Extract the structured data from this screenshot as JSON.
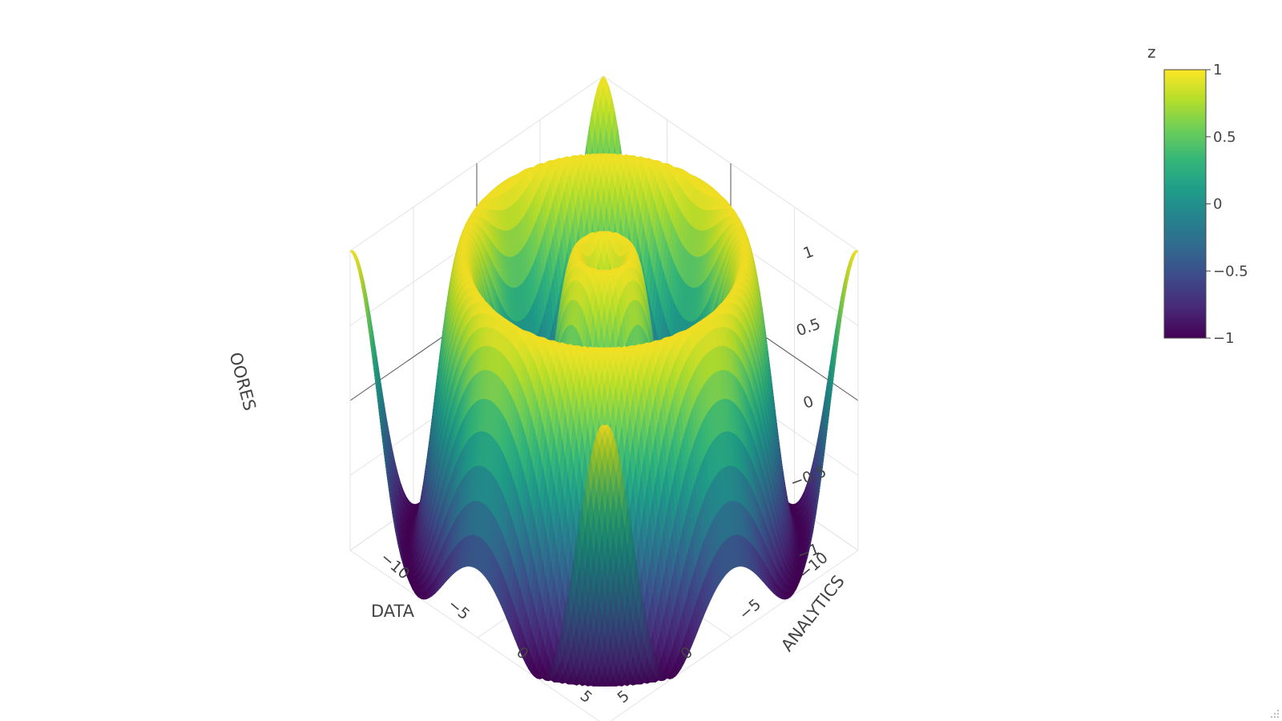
{
  "chart_data": {
    "type": "surface",
    "title": "",
    "colorscale": "Viridis",
    "colors": [
      "#440154",
      "#482878",
      "#3e4989",
      "#31688e",
      "#26828e",
      "#1f9e89",
      "#35b779",
      "#6ece58",
      "#b5de2b",
      "#fde725"
    ],
    "x_axis": {
      "title": "DATA",
      "range": [
        -10,
        10
      ],
      "ticks": [
        -10,
        -5,
        0,
        5
      ],
      "tick_labels": [
        "−10",
        "−5",
        "0",
        "5"
      ]
    },
    "y_axis": {
      "title": "ANALYTICS",
      "range": [
        -10,
        10
      ],
      "ticks": [
        -10,
        -5,
        0,
        5
      ],
      "tick_labels": [
        "−10",
        "−5",
        "0",
        "5"
      ]
    },
    "z_axis": {
      "title": "OORES",
      "range": [
        -1,
        1
      ],
      "ticks": [
        -1,
        -0.5,
        0,
        0.5,
        1
      ],
      "tick_labels": [
        "−1",
        "−0.5",
        "0",
        "0.5",
        "1"
      ]
    },
    "colorbar": {
      "title": "z",
      "cmin": -1,
      "cmax": 1,
      "tick_values": [
        -1,
        -0.5,
        0,
        0.5,
        1
      ],
      "tick_labels": [
        "−1",
        "−0.5",
        "0",
        "0.5",
        "1"
      ]
    },
    "surface": {
      "function": "sin(sqrt(x^2 + y^2))",
      "x_range": [
        -10,
        10
      ],
      "y_range": [
        -10,
        10
      ],
      "z_range": [
        -1,
        1
      ]
    },
    "grid": true
  }
}
